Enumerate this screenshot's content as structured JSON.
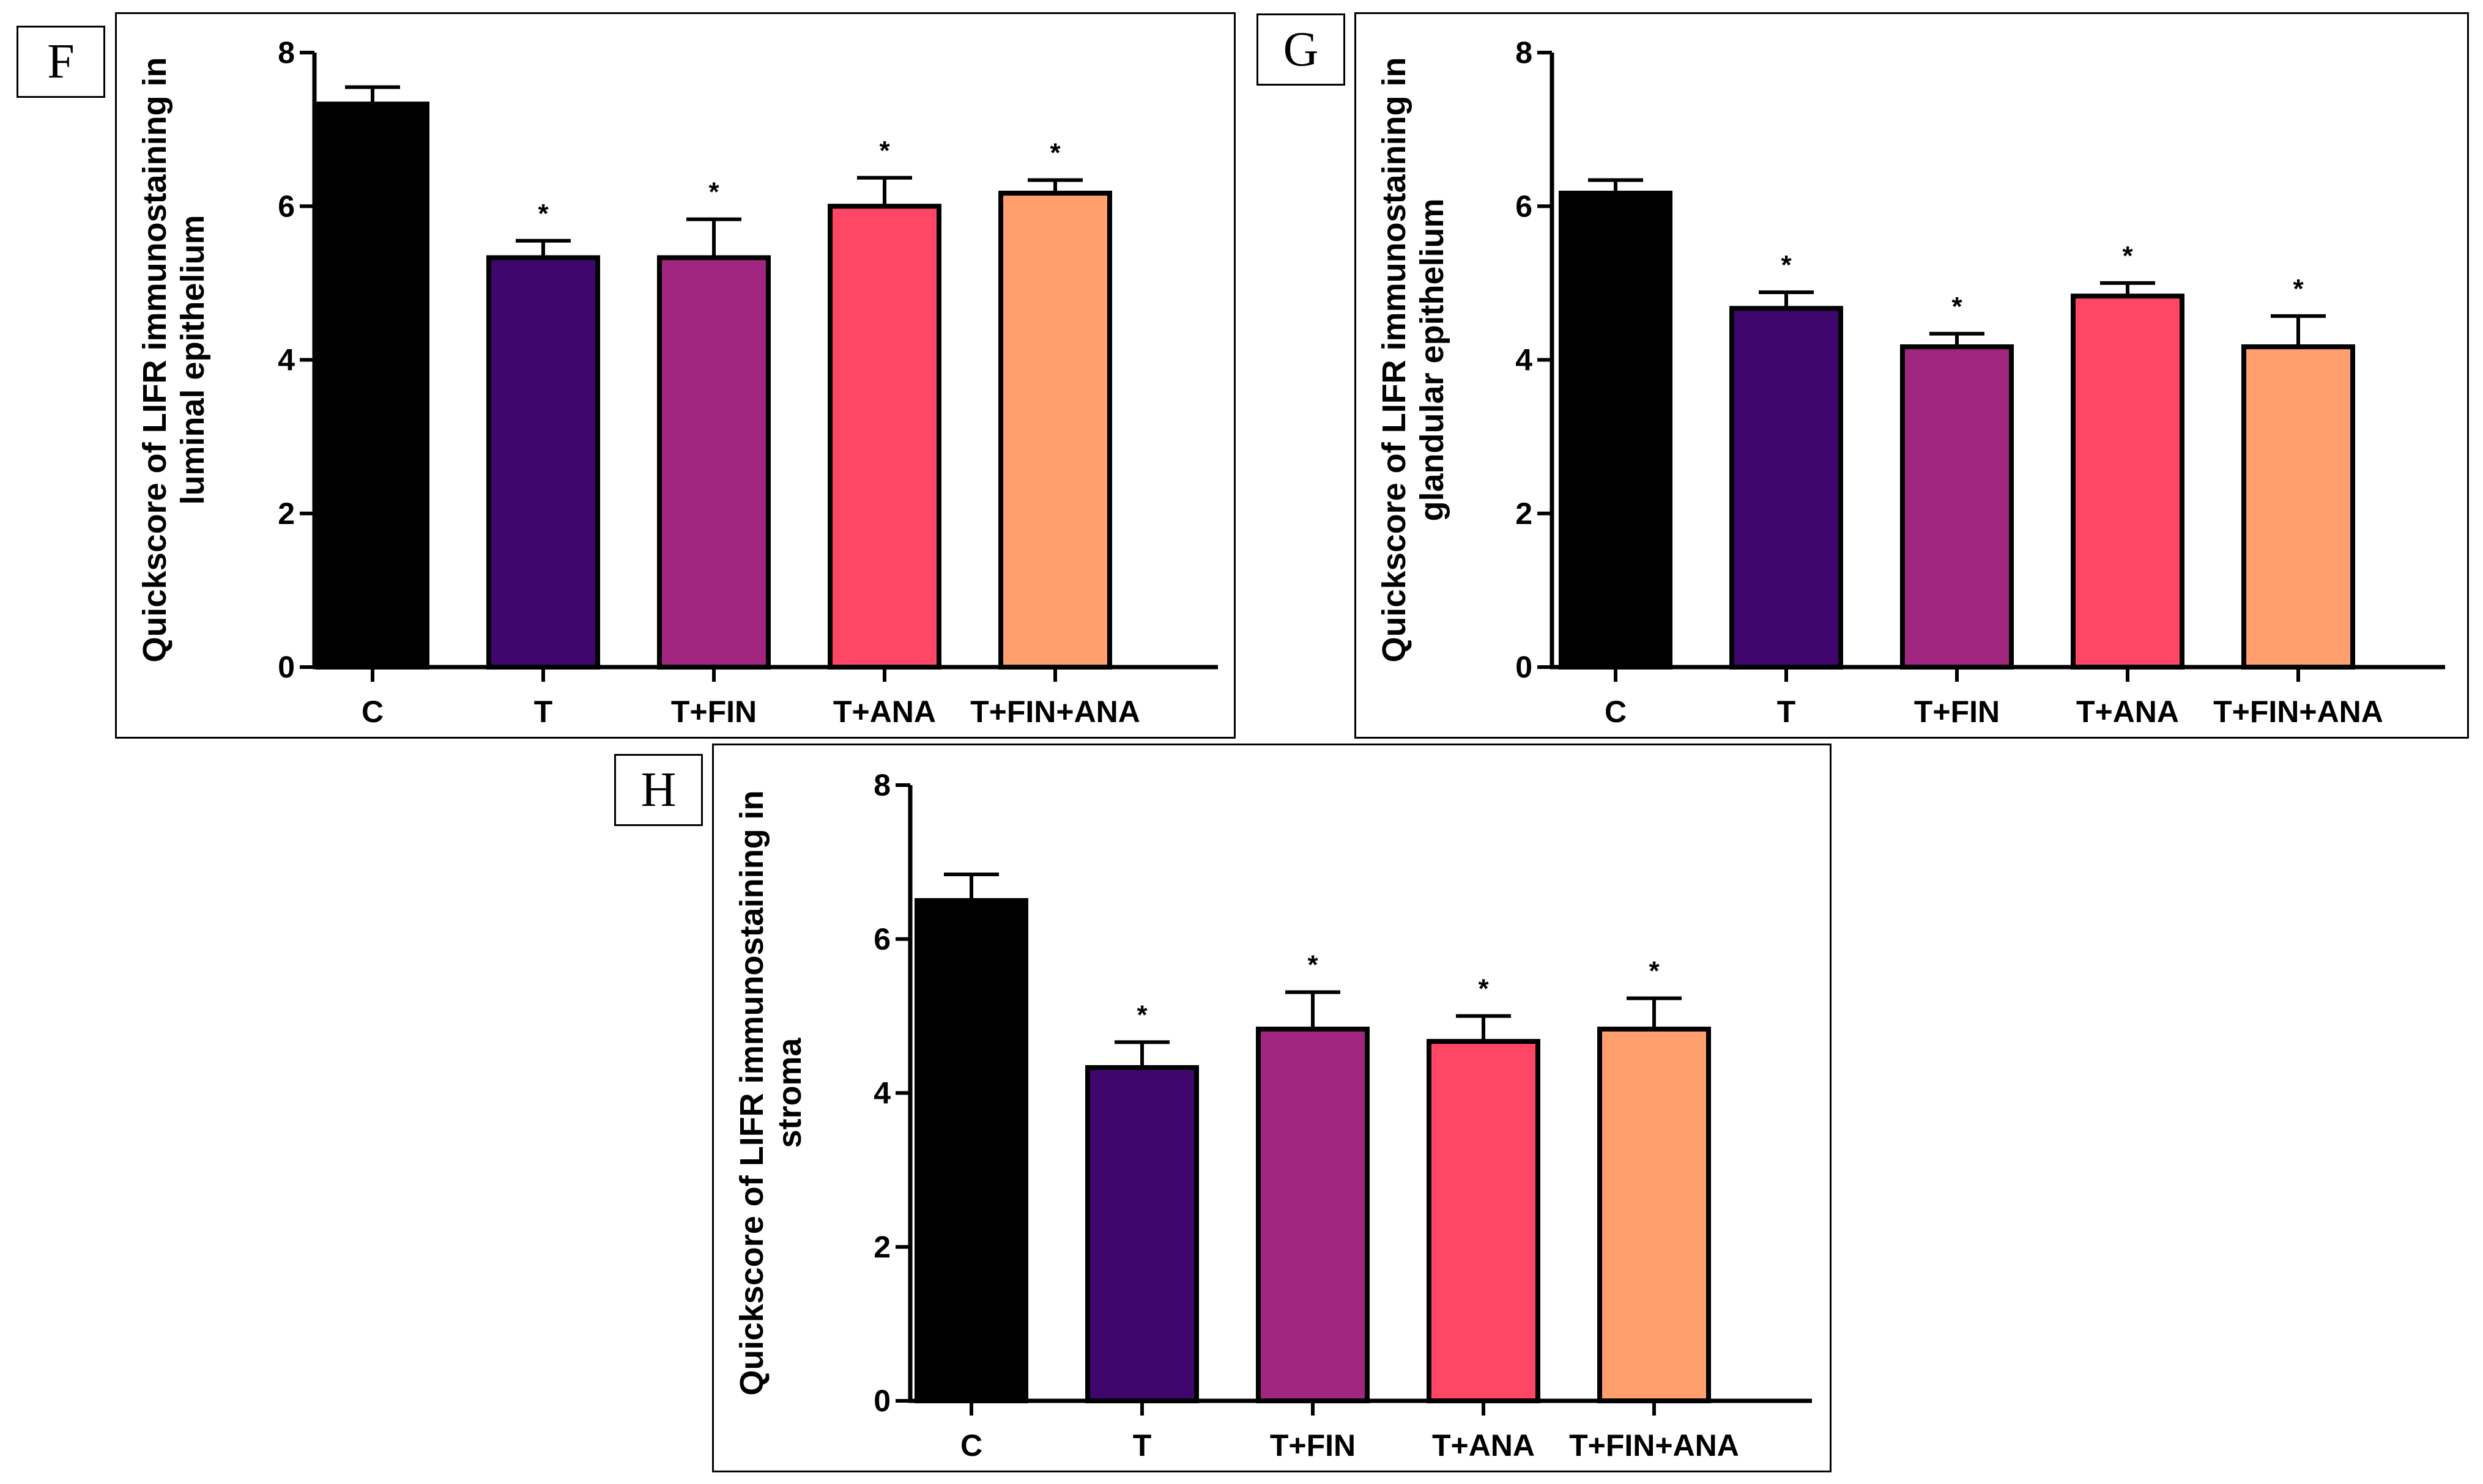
{
  "colors": {
    "C": "#000000",
    "T": "#3F066E",
    "T+FIN": "#A02680",
    "T+ANA": "#FF4665",
    "T+FIN+ANA": "#FE9F6D"
  },
  "chart_data": [
    {
      "panel": "F",
      "type": "bar",
      "categories": [
        "C",
        "T",
        "T+FIN",
        "T+ANA",
        "T+FIN+ANA"
      ],
      "values": [
        7.33,
        5.33,
        5.33,
        6.0,
        6.17
      ],
      "errors": [
        0.22,
        0.22,
        0.5,
        0.37,
        0.17
      ],
      "significance": [
        "",
        "*",
        "*",
        "*",
        "*"
      ],
      "ylabel_lines": [
        "Quickscore of LIFR immunostaining in",
        "luminal epithelium"
      ],
      "ylim": [
        0,
        8
      ],
      "yticks": [
        0,
        2,
        4,
        6,
        8
      ]
    },
    {
      "panel": "G",
      "type": "bar",
      "categories": [
        "C",
        "T",
        "T+FIN",
        "T+ANA",
        "T+FIN+ANA"
      ],
      "values": [
        6.17,
        4.67,
        4.17,
        4.83,
        4.17
      ],
      "errors": [
        0.17,
        0.21,
        0.17,
        0.17,
        0.4
      ],
      "significance": [
        "",
        "*",
        "*",
        "*",
        "*"
      ],
      "ylabel_lines": [
        "Quickscore of LIFR immunostaining in",
        "glandular epithelium"
      ],
      "ylim": [
        0,
        8
      ],
      "yticks": [
        0,
        2,
        4,
        6,
        8
      ]
    },
    {
      "panel": "H",
      "type": "bar",
      "categories": [
        "C",
        "T",
        "T+FIN",
        "T+ANA",
        "T+FIN+ANA"
      ],
      "values": [
        6.5,
        4.33,
        4.83,
        4.67,
        4.83
      ],
      "errors": [
        0.34,
        0.33,
        0.48,
        0.33,
        0.4
      ],
      "significance": [
        "",
        "*",
        "*",
        "*",
        "*"
      ],
      "ylabel_lines": [
        "Quickscore of LIFR immunostaining in",
        "stroma"
      ],
      "ylim": [
        0,
        8
      ],
      "yticks": [
        0,
        2,
        4,
        6,
        8
      ]
    }
  ]
}
